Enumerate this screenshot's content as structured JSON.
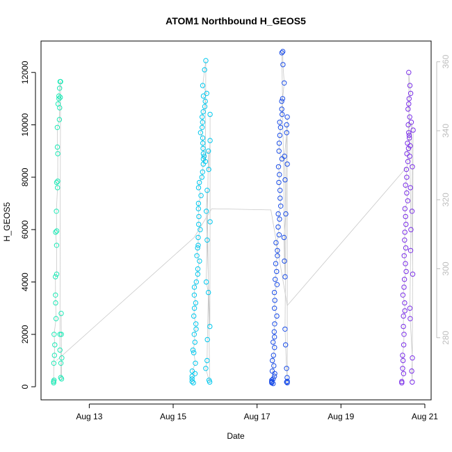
{
  "chart_data": {
    "type": "scatter",
    "title": "ATOM1 Northbound H_GEOS5",
    "xlabel": "Date",
    "ylabel": "H_GEOS5",
    "x_ticks": [
      "Aug 13",
      "Aug 15",
      "Aug 17",
      "Aug 19",
      "Aug 21"
    ],
    "x_tick_days": [
      13,
      15,
      17,
      19,
      21
    ],
    "xlim_days": [
      11.85,
      21.15
    ],
    "y_ticks": [
      0,
      2000,
      4000,
      6000,
      8000,
      10000,
      12000
    ],
    "ylim": [
      -500,
      13200
    ],
    "y2_ticks": [
      280,
      300,
      320,
      340,
      360
    ],
    "y2lim": [
      262,
      366
    ],
    "grid": false,
    "marker": "open-circle",
    "trace_color": "#c8c8c8",
    "series": [
      {
        "color": "#1de9b6",
        "x_day_range": [
          12.15,
          12.35
        ],
        "values": [
          150,
          250,
          200,
          900,
          1200,
          1600,
          2000,
          2600,
          3200,
          3500,
          4200,
          4300,
          5400,
          5900,
          5950,
          6700,
          7600,
          7800,
          7850,
          8900,
          9150,
          9900,
          10200,
          10650,
          10800,
          11000,
          11050,
          11100,
          11400,
          11650,
          11650,
          2000,
          1400,
          1100,
          900,
          350,
          300,
          2000,
          2800
        ]
      },
      {
        "color": "#00c8ee",
        "x_day_range": [
          15.45,
          15.88
        ],
        "values": [
          150,
          200,
          300,
          400,
          500,
          600,
          900,
          1300,
          1400,
          1700,
          2000,
          2200,
          2400,
          2700,
          3000,
          3200,
          3500,
          3800,
          4000,
          4300,
          4500,
          4800,
          5000,
          5300,
          5400,
          5700,
          6000,
          6200,
          6500,
          6800,
          7000,
          7300,
          7600,
          7800,
          8000,
          8200,
          8500,
          8700,
          8900,
          9100,
          9300,
          9500,
          9700,
          9900,
          10100,
          10300,
          10500,
          10700,
          10900,
          11100,
          11200,
          11500,
          12100,
          12450,
          8600,
          8800,
          9000,
          4000,
          3600,
          1800,
          1000,
          700,
          250,
          180,
          7500,
          6700,
          5600,
          2300,
          6300,
          10400,
          9400,
          8300
        ]
      },
      {
        "color": "#1a4de8",
        "x_day_range": [
          17.35,
          17.72
        ],
        "values": [
          120,
          150,
          180,
          200,
          250,
          300,
          400,
          500,
          600,
          800,
          1000,
          1200,
          1500,
          1700,
          1900,
          2100,
          2400,
          2700,
          3000,
          3300,
          3600,
          3900,
          4100,
          4400,
          4700,
          5000,
          5200,
          5500,
          5800,
          6100,
          6400,
          6600,
          6900,
          7200,
          7500,
          7800,
          8100,
          8400,
          8700,
          9000,
          9300,
          9600,
          9900,
          10100,
          10400,
          10600,
          10900,
          11000,
          11600,
          12300,
          12800,
          12750,
          4200,
          4800,
          5700,
          6600,
          7900,
          8800,
          9700,
          10000,
          2200,
          1600,
          700,
          350,
          150,
          180,
          210,
          10300,
          8500
        ]
      },
      {
        "color": "#7a2ee8",
        "x_day_range": [
          20.45,
          20.72
        ],
        "values": [
          150,
          200,
          500,
          700,
          1000,
          1200,
          1600,
          2000,
          2300,
          2700,
          2900,
          3200,
          3500,
          3800,
          4100,
          4400,
          4700,
          5000,
          5300,
          5600,
          5900,
          6200,
          6500,
          6800,
          7100,
          7400,
          7700,
          8000,
          8300,
          8600,
          8900,
          9100,
          9300,
          9500,
          9700,
          10000,
          10300,
          10600,
          10800,
          11000,
          11200,
          11500,
          12000,
          9600,
          9200,
          8800,
          7600,
          6000,
          5200,
          3000,
          2600,
          1100,
          600,
          180,
          9800,
          10100,
          8400,
          6700,
          4300
        ]
      }
    ],
    "connector_trace": {
      "x_days": [
        12.22,
        15.5,
        15.92,
        17.33,
        17.72,
        20.55
      ],
      "values": [
        1000,
        5700,
        6800,
        6750,
        3100,
        8350
      ]
    }
  }
}
